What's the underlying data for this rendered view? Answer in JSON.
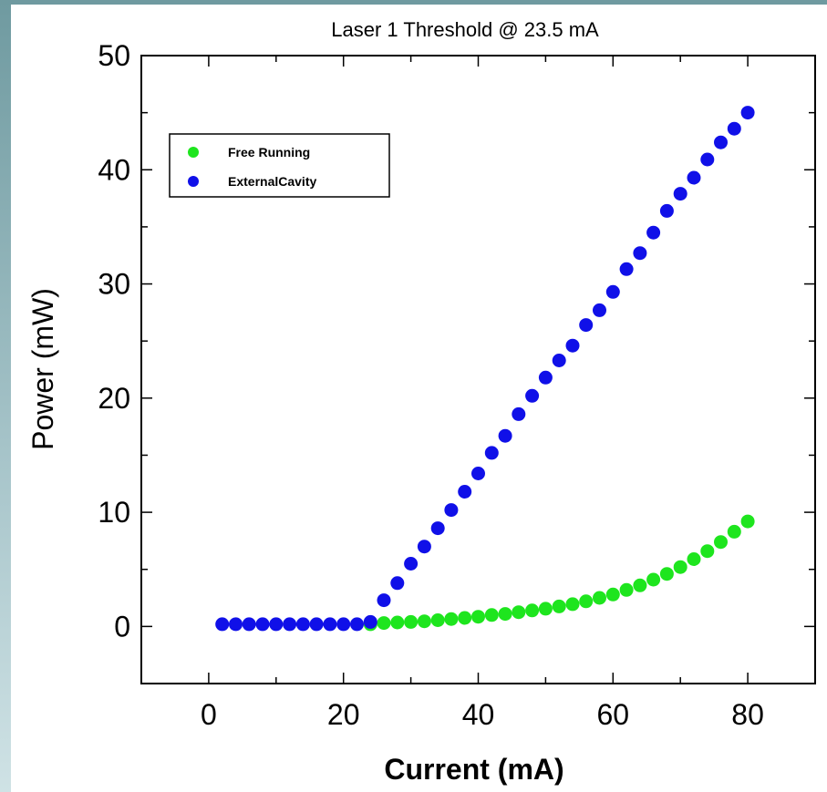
{
  "chart_data": {
    "type": "scatter",
    "title": "Laser 1 Threshold @ 23.5 mA",
    "xlabel": "Current (mA)",
    "ylabel": "Power (mW)",
    "xlim": [
      -10,
      90
    ],
    "ylim": [
      -5,
      50
    ],
    "xticks": [
      "0",
      "20",
      "40",
      "60",
      "80"
    ],
    "yticks": [
      "0",
      "10",
      "20",
      "30",
      "40",
      "50"
    ],
    "xtick_values": [
      0,
      20,
      40,
      60,
      80
    ],
    "ytick_values": [
      0,
      10,
      20,
      30,
      40,
      50
    ],
    "grid": false,
    "legend_position": "top-left",
    "series": [
      {
        "name": "Free Running",
        "color": "#1ee51e",
        "x": [
          24,
          26,
          28,
          30,
          32,
          34,
          36,
          38,
          40,
          42,
          44,
          46,
          48,
          50,
          52,
          54,
          56,
          58,
          60,
          62,
          64,
          66,
          68,
          70,
          72,
          74,
          76,
          78,
          80
        ],
        "y": [
          0.2,
          0.3,
          0.35,
          0.4,
          0.45,
          0.55,
          0.65,
          0.75,
          0.85,
          1.0,
          1.1,
          1.25,
          1.4,
          1.55,
          1.75,
          1.95,
          2.2,
          2.5,
          2.8,
          3.2,
          3.6,
          4.1,
          4.6,
          5.2,
          5.9,
          6.6,
          7.4,
          8.3,
          9.2
        ]
      },
      {
        "name": "ExternalCavity",
        "color": "#1010e8",
        "x": [
          2,
          4,
          6,
          8,
          10,
          12,
          14,
          16,
          18,
          20,
          22,
          24,
          26,
          28,
          30,
          32,
          34,
          36,
          38,
          40,
          42,
          44,
          46,
          48,
          50,
          52,
          54,
          56,
          58,
          60,
          62,
          64,
          66,
          68,
          70,
          72,
          74,
          76,
          78,
          80
        ],
        "y": [
          0.2,
          0.2,
          0.2,
          0.2,
          0.2,
          0.2,
          0.2,
          0.2,
          0.2,
          0.2,
          0.2,
          0.4,
          2.3,
          3.8,
          5.5,
          7.0,
          8.6,
          10.2,
          11.8,
          13.4,
          15.2,
          16.7,
          18.6,
          20.2,
          21.8,
          23.3,
          24.6,
          26.4,
          27.7,
          29.3,
          31.3,
          32.7,
          34.5,
          36.4,
          37.9,
          39.3,
          40.9,
          42.4,
          43.6,
          45.0
        ]
      }
    ]
  }
}
